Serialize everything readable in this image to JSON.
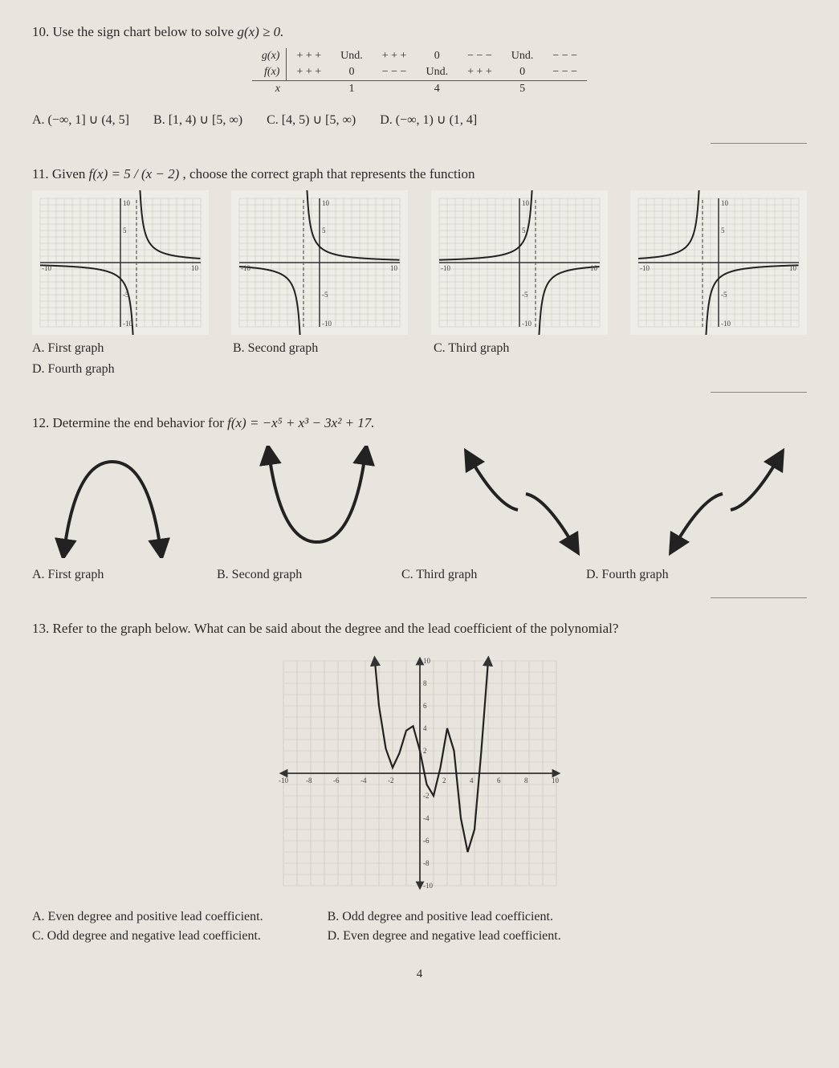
{
  "q10": {
    "number": "10.",
    "prompt_pre": "Use the sign chart below to solve ",
    "prompt_expr": "g(x) ≥ 0.",
    "chart": {
      "g_label": "g(x)",
      "f_label": "f(x)",
      "x_label": "x",
      "g_cells": [
        "+ + +",
        "Und.",
        "+ + +",
        "0",
        "− − −",
        "Und.",
        "− − −"
      ],
      "f_cells": [
        "+ + +",
        "0",
        "− − −",
        "Und.",
        "+ + +",
        "0",
        "− − −"
      ],
      "x_cells": [
        "",
        "1",
        "",
        "4",
        "",
        "5",
        ""
      ]
    },
    "choices": {
      "A": "A.  (−∞, 1] ∪ (4, 5]",
      "B": "B.  [1, 4) ∪ [5, ∞)",
      "C": "C.  [4, 5) ∪ [5, ∞)",
      "D": "D.  (−∞, 1) ∪ (1, 4]"
    }
  },
  "q11": {
    "number": "11.",
    "prompt_pre": "Given ",
    "prompt_expr": "f(x) = 5 / (x − 2)",
    "prompt_post": ", choose the correct graph that represents the function",
    "graphs": {
      "grid_stroke": "#c8c2b8",
      "axis_stroke": "#333333",
      "curve_stroke": "#222222",
      "asymptote_stroke": "#555555",
      "xmin": -10,
      "xmax": 10,
      "ymin": -10,
      "ymax": 10,
      "labels": [
        "10",
        "5",
        "-5",
        "-10"
      ],
      "A": {
        "va": 2,
        "reflect": false
      },
      "B": {
        "va": -2,
        "reflect": false
      },
      "C": {
        "va": 2,
        "reflect": true
      },
      "D": {
        "va": -2,
        "reflect": true
      }
    },
    "choices": {
      "A": "A.  First graph",
      "B": "B.  Second graph",
      "C": "C.  Third graph",
      "D": "D.  Fourth graph"
    }
  },
  "q12": {
    "number": "12.",
    "prompt_pre": "Determine the end behavior for ",
    "prompt_expr": "f(x) = −x⁵ + x³ − 3x² + 17.",
    "stroke": "#222222",
    "stroke_width": 4,
    "choices": {
      "A": "A.  First graph",
      "B": "B.  Second graph",
      "C": "C.  Third graph",
      "D": "D.  Fourth graph"
    }
  },
  "q13": {
    "number": "13.",
    "prompt": "Refer to the graph below. What can be said about the degree and the lead coefficient of the polynomial?",
    "graph": {
      "grid_stroke": "#c8c2b8",
      "axis_stroke": "#333333",
      "curve_stroke": "#222222",
      "xticks": [
        "-10",
        "-8",
        "-6",
        "-4",
        "-2",
        "2",
        "4",
        "6",
        "8",
        "10"
      ],
      "yticks": [
        "10",
        "8",
        "6",
        "4",
        "2",
        "-2",
        "-4",
        "-6",
        "-8",
        "-10"
      ],
      "points": [
        [
          -3.3,
          10
        ],
        [
          -3.0,
          6
        ],
        [
          -2.5,
          2.2
        ],
        [
          -2.0,
          0.5
        ],
        [
          -1.5,
          1.8
        ],
        [
          -1.0,
          3.8
        ],
        [
          -0.5,
          4.2
        ],
        [
          0.0,
          2.0
        ],
        [
          0.5,
          -1.0
        ],
        [
          1.0,
          -2.0
        ],
        [
          1.5,
          0.5
        ],
        [
          2.0,
          4.0
        ],
        [
          2.5,
          2.0
        ],
        [
          3.0,
          -4.0
        ],
        [
          3.5,
          -7.0
        ],
        [
          4.0,
          -5.0
        ],
        [
          4.5,
          2.0
        ],
        [
          5.0,
          10
        ]
      ]
    },
    "choices": {
      "A": "A.  Even degree and positive lead coefficient.",
      "B": "B.  Odd degree and positive lead coefficient.",
      "C": "C.  Odd degree and negative lead coefficient.",
      "D": "D.  Even degree and negative lead coefficient."
    }
  },
  "page_number": "4"
}
